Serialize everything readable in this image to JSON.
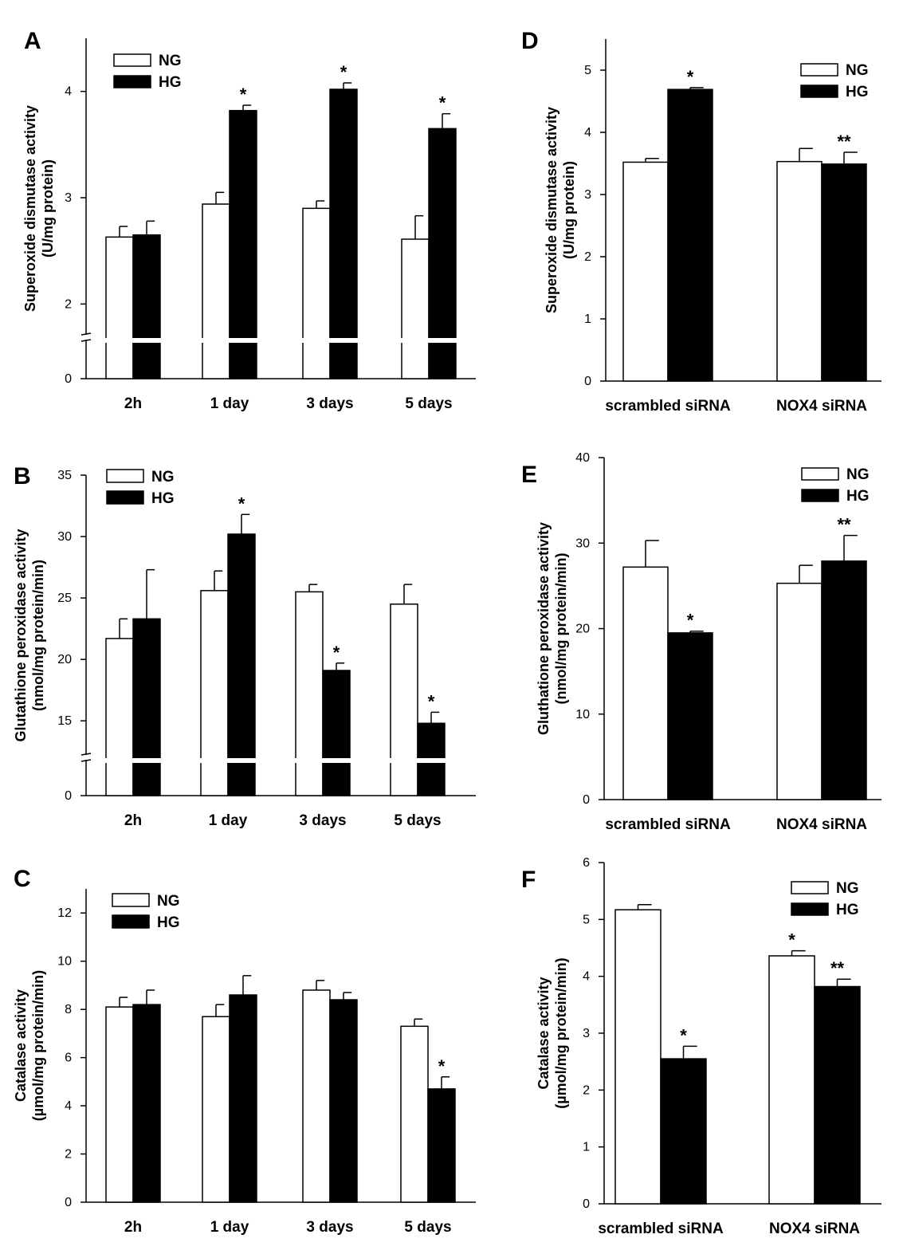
{
  "chart_data": [
    {
      "panel": "A",
      "type": "bar",
      "categories": [
        "2h",
        "1 day",
        "3 days",
        "5 days"
      ],
      "ylabel": [
        "Superoxide dismutase activity",
        "(U/mg protein)"
      ],
      "yticks": [
        0,
        2,
        3,
        4
      ],
      "ylim": [
        0,
        4.5
      ],
      "axis_break": true,
      "legend": [
        "NG",
        "HG"
      ],
      "legend_position": "top-left",
      "series": [
        {
          "name": "NG",
          "values": [
            2.63,
            2.94,
            2.9,
            2.61
          ],
          "errors": [
            0.1,
            0.11,
            0.07,
            0.22
          ],
          "annotations": [
            "",
            "",
            "",
            ""
          ]
        },
        {
          "name": "HG",
          "values": [
            2.65,
            3.82,
            4.02,
            3.65
          ],
          "errors": [
            0.13,
            0.05,
            0.06,
            0.14
          ],
          "annotations": [
            "",
            "*",
            "*",
            "*"
          ]
        }
      ]
    },
    {
      "panel": "B",
      "type": "bar",
      "categories": [
        "2h",
        "1 day",
        "3 days",
        "5 days"
      ],
      "ylabel": [
        "Glutathione peroxidase activity",
        "(nmol/mg protein/min)"
      ],
      "yticks": [
        0,
        15,
        20,
        25,
        30,
        35
      ],
      "ylim": [
        0,
        35
      ],
      "axis_break": true,
      "legend": [
        "NG",
        "HG"
      ],
      "legend_position": "top-left",
      "series": [
        {
          "name": "NG",
          "values": [
            21.7,
            25.6,
            25.5,
            24.5
          ],
          "errors": [
            1.6,
            1.6,
            0.6,
            1.6
          ],
          "annotations": [
            "",
            "",
            "",
            ""
          ]
        },
        {
          "name": "HG",
          "values": [
            23.3,
            30.2,
            19.1,
            14.8
          ],
          "errors": [
            4.0,
            1.6,
            0.6,
            0.9
          ],
          "annotations": [
            "",
            "*",
            "*",
            "*"
          ]
        }
      ]
    },
    {
      "panel": "C",
      "type": "bar",
      "categories": [
        "2h",
        "1 day",
        "3 days",
        "5 days"
      ],
      "ylabel": [
        "Catalase activity",
        "(µmol/mg protein/min)"
      ],
      "yticks": [
        0,
        2,
        4,
        6,
        8,
        10,
        12
      ],
      "ylim": [
        0,
        13
      ],
      "axis_break": false,
      "legend": [
        "NG",
        "HG"
      ],
      "legend_position": "top-left",
      "series": [
        {
          "name": "NG",
          "values": [
            8.1,
            7.7,
            8.8,
            7.3
          ],
          "errors": [
            0.4,
            0.5,
            0.4,
            0.3
          ],
          "annotations": [
            "",
            "",
            "",
            ""
          ]
        },
        {
          "name": "HG",
          "values": [
            8.2,
            8.6,
            8.4,
            4.7
          ],
          "errors": [
            0.6,
            0.8,
            0.3,
            0.5
          ],
          "annotations": [
            "",
            "",
            "",
            "*"
          ]
        }
      ]
    },
    {
      "panel": "D",
      "type": "bar",
      "categories": [
        "scrambled siRNA",
        "NOX4 siRNA"
      ],
      "ylabel": [
        "Superoxide dismutase activity",
        "(U/mg protein)"
      ],
      "yticks": [
        0,
        1,
        2,
        3,
        4,
        5
      ],
      "ylim": [
        0,
        5.5
      ],
      "axis_break": false,
      "legend": [
        "NG",
        "HG"
      ],
      "legend_position": "top-right",
      "series": [
        {
          "name": "NG",
          "values": [
            3.52,
            3.53
          ],
          "errors": [
            0.06,
            0.21
          ],
          "annotations": [
            "",
            ""
          ]
        },
        {
          "name": "HG",
          "values": [
            4.69,
            3.49
          ],
          "errors": [
            0.03,
            0.19
          ],
          "annotations": [
            "*",
            "**"
          ]
        }
      ]
    },
    {
      "panel": "E",
      "type": "bar",
      "categories": [
        "scrambled siRNA",
        "NOX4 siRNA"
      ],
      "ylabel": [
        "Gluthatione peroxidase activity",
        "(nmol/mg protein/min)"
      ],
      "yticks": [
        0,
        10,
        20,
        30,
        40
      ],
      "ylim": [
        0,
        40
      ],
      "axis_break": false,
      "legend": [
        "NG",
        "HG"
      ],
      "legend_position": "top-right",
      "series": [
        {
          "name": "NG",
          "values": [
            27.2,
            25.3
          ],
          "errors": [
            3.1,
            2.1
          ],
          "annotations": [
            "",
            ""
          ]
        },
        {
          "name": "HG",
          "values": [
            19.5,
            27.9
          ],
          "errors": [
            0.2,
            3.0
          ],
          "annotations": [
            "*",
            "**"
          ]
        }
      ]
    },
    {
      "panel": "F",
      "type": "bar",
      "categories": [
        "scrambled siRNA",
        "NOX4 siRNA"
      ],
      "ylabel": [
        "Catalase activity",
        "(µmol/mg protein/min)"
      ],
      "yticks": [
        0,
        1,
        2,
        3,
        4,
        5,
        6
      ],
      "ylim": [
        0,
        6
      ],
      "axis_break": false,
      "legend": [
        "NG",
        "HG"
      ],
      "legend_position": "top-right",
      "series": [
        {
          "name": "NG",
          "values": [
            5.17,
            4.36
          ],
          "errors": [
            0.09,
            0.09
          ],
          "annotations": [
            "",
            "*"
          ]
        },
        {
          "name": "HG",
          "values": [
            2.55,
            3.82
          ],
          "errors": [
            0.22,
            0.13
          ],
          "annotations": [
            "*",
            "**"
          ]
        }
      ]
    }
  ]
}
